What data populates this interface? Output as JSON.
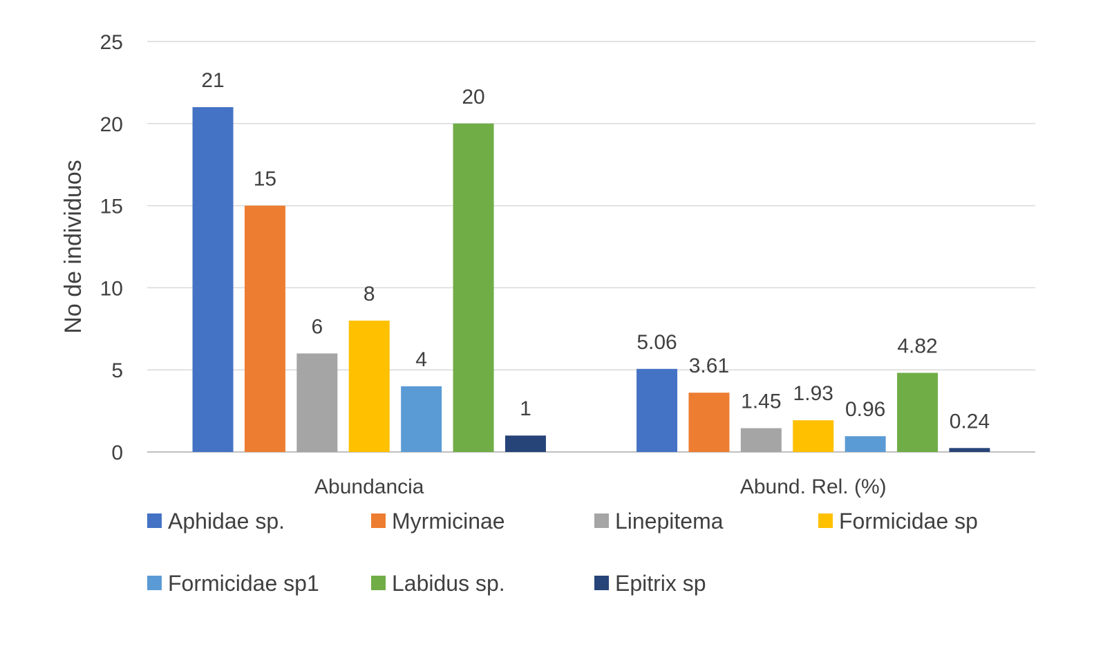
{
  "chart_data": {
    "type": "bar",
    "title": "",
    "xlabel": "",
    "ylabel": "No de individuos",
    "ylim": [
      0,
      25
    ],
    "yticks": [
      0,
      5,
      10,
      15,
      20,
      25
    ],
    "grid": true,
    "legend_position": "bottom",
    "categories": [
      "Abundancia",
      "Abund. Rel. (%)"
    ],
    "series": [
      {
        "name": "Aphidae sp.",
        "color": "#4472C4",
        "values": [
          21,
          5.06
        ],
        "labels": [
          "21",
          "5.06"
        ]
      },
      {
        "name": "Myrmicinae",
        "color": "#ED7D31",
        "values": [
          15,
          3.61
        ],
        "labels": [
          "15",
          "3.61"
        ]
      },
      {
        "name": "Linepitema",
        "color": "#A5A5A5",
        "values": [
          6,
          1.45
        ],
        "labels": [
          "6",
          "1.45"
        ]
      },
      {
        "name": "Formicidae sp",
        "color": "#FFC000",
        "values": [
          8,
          1.93
        ],
        "labels": [
          "8",
          "1.93"
        ]
      },
      {
        "name": "Formicidae sp1",
        "color": "#5B9BD5",
        "values": [
          4,
          0.96
        ],
        "labels": [
          "4",
          "0.96"
        ]
      },
      {
        "name": "Labidus sp.",
        "color": "#70AD47",
        "values": [
          20,
          4.82
        ],
        "labels": [
          "20",
          "4.82"
        ]
      },
      {
        "name": "Epitrix sp",
        "color": "#264478",
        "values": [
          1,
          0.24
        ],
        "labels": [
          "1",
          "0.24"
        ]
      }
    ]
  }
}
